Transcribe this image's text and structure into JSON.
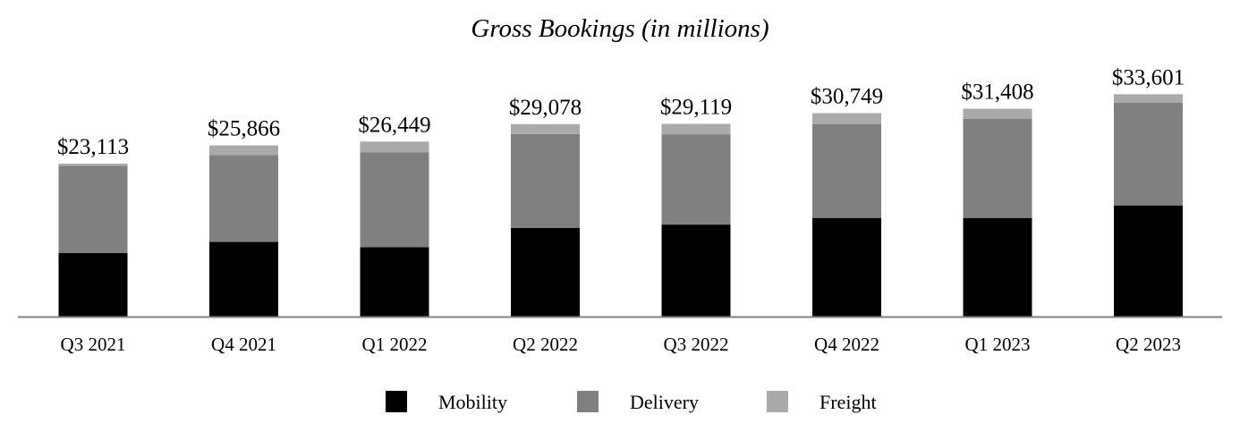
{
  "chart_data": {
    "type": "bar",
    "stacked": true,
    "title": "Gross Bookings (in millions)",
    "xlabel": "",
    "ylabel": "",
    "ylim": [
      0,
      36000
    ],
    "grid": false,
    "legend_position": "bottom-center",
    "categories": [
      "Q3 2021",
      "Q4 2021",
      "Q1 2022",
      "Q2 2022",
      "Q3 2022",
      "Q4 2022",
      "Q1 2023",
      "Q2 2023"
    ],
    "totals": [
      "$23,113",
      "$25,866",
      "$26,449",
      "$29,078",
      "$29,119",
      "$30,749",
      "$31,408",
      "$33,601"
    ],
    "series": [
      {
        "name": "Mobility",
        "color": "#000000",
        "values": [
          9600,
          11300,
          10500,
          13400,
          13900,
          14900,
          14900,
          16800
        ]
      },
      {
        "name": "Delivery",
        "color": "#808080",
        "values": [
          13200,
          13100,
          14300,
          14200,
          13600,
          14200,
          15000,
          15500
        ]
      },
      {
        "name": "Freight",
        "color": "#aaaaaa",
        "values": [
          313,
          1466,
          1649,
          1478,
          1619,
          1649,
          1508,
          1301
        ]
      }
    ]
  }
}
